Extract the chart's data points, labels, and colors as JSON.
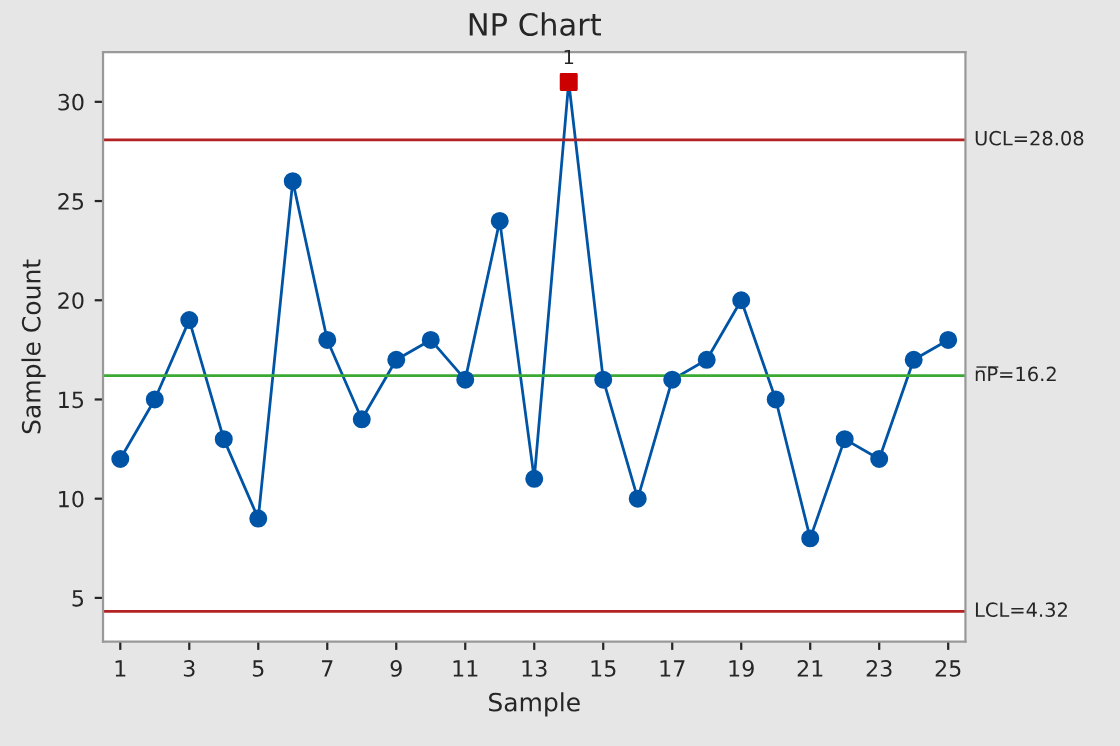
{
  "chart_data": {
    "type": "line",
    "title": "NP Chart",
    "xlabel": "Sample",
    "ylabel": "Sample Count",
    "x": [
      1,
      2,
      3,
      4,
      5,
      6,
      7,
      8,
      9,
      10,
      11,
      12,
      13,
      14,
      15,
      16,
      17,
      18,
      19,
      20,
      21,
      22,
      23,
      24,
      25
    ],
    "series": [
      {
        "color": "#0054a6",
        "values": [
          12,
          15,
          19,
          13,
          9,
          26,
          18,
          14,
          17,
          18,
          16,
          24,
          11,
          31,
          16,
          10,
          16,
          17,
          20,
          15,
          8,
          13,
          12,
          17,
          18
        ],
        "colors": [
          "#0054a6",
          "#0054a6",
          "#0054a6",
          "#0054a6",
          "#0054a6",
          "#0054a6",
          "#0054a6",
          "#0054a6",
          "#0054a6",
          "#0054a6",
          "#0054a6",
          "#0054a6",
          "#0054a6",
          "#cc0000",
          "#0054a6",
          "#0054a6",
          "#0054a6",
          "#0054a6",
          "#0054a6",
          "#0054a6",
          "#0054a6",
          "#0054a6",
          "#0054a6",
          "#0054a6",
          "#0054a6"
        ]
      }
    ],
    "marker": "circle",
    "line_style": "solid",
    "xlim": [
      0.5,
      25.5
    ],
    "xticks": [
      1,
      3,
      5,
      7,
      9,
      11,
      13,
      15,
      17,
      19,
      21,
      23,
      25
    ],
    "ylim": [
      2.8,
      32.5
    ],
    "yticks": [
      5,
      10,
      15,
      20,
      25,
      30
    ],
    "ref_lines": [
      {
        "axis": "y",
        "value": 28.08,
        "label": "UCL=28.08",
        "color": "#b22222"
      },
      {
        "axis": "y",
        "value": 16.2,
        "label": "n̅P̅=16.2",
        "color": "#3aaa35"
      },
      {
        "axis": "y",
        "value": 4.32,
        "label": "LCL=4.32",
        "color": "#b22222"
      }
    ],
    "annotations": [
      {
        "text": "1",
        "x": 14,
        "y": 31
      }
    ],
    "grid": false,
    "legend": false
  }
}
